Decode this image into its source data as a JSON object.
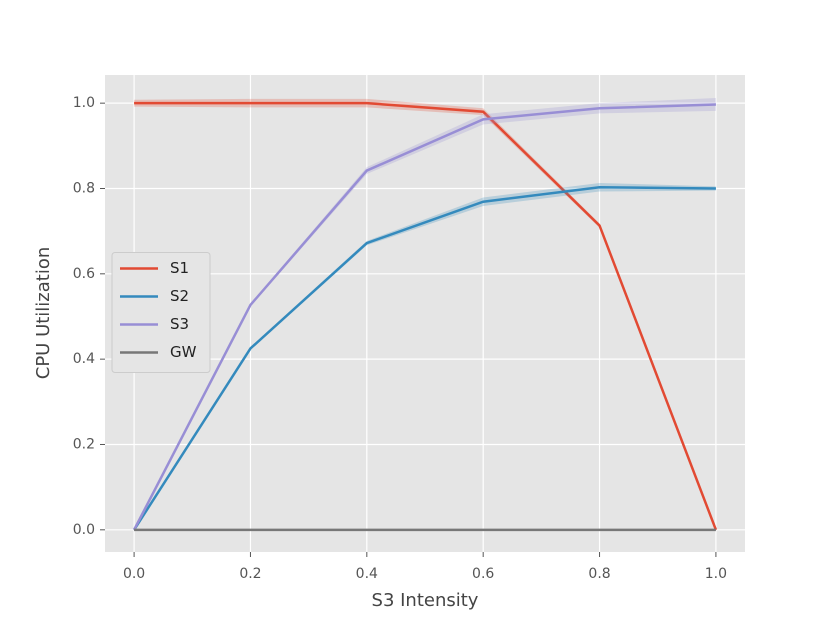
{
  "chart_data": {
    "type": "line",
    "x_label": "S3 Intensity",
    "y_label": "CPU Utilization",
    "x": [
      0.0,
      0.2,
      0.4,
      0.6,
      0.8,
      1.0
    ],
    "series": [
      {
        "name": "S1",
        "color": "#e24a33",
        "values": [
          1.0,
          1.0,
          1.0,
          0.98,
          0.713,
          0.0
        ],
        "errors": [
          0.008,
          0.01,
          0.01,
          0.008,
          0.005,
          0.003
        ]
      },
      {
        "name": "S2",
        "color": "#348abd",
        "values": [
          0.0,
          0.425,
          0.672,
          0.769,
          0.803,
          0.8
        ],
        "errors": [
          0.003,
          0.003,
          0.005,
          0.01,
          0.01,
          0.005
        ]
      },
      {
        "name": "S3",
        "color": "#988ed5",
        "values": [
          0.0,
          0.527,
          0.842,
          0.962,
          0.988,
          0.997
        ],
        "errors": [
          0.003,
          0.003,
          0.008,
          0.012,
          0.012,
          0.015
        ]
      },
      {
        "name": "GW",
        "color": "#777777",
        "values": [
          0.0,
          0.0,
          0.0,
          0.0,
          0.0,
          0.0
        ],
        "errors": [
          0.0,
          0.0,
          0.0,
          0.0,
          0.0,
          0.0
        ]
      }
    ],
    "xlim": [
      -0.05,
      1.05
    ],
    "ylim": [
      -0.052,
      1.066
    ],
    "xticks": [
      {
        "value": 0,
        "label": "0.0"
      },
      0.2,
      0.4,
      0.6,
      0.8,
      {
        "value": 1,
        "label": "1.0"
      }
    ],
    "yticks": [
      {
        "value": 0,
        "label": "0.0"
      },
      0.2,
      0.4,
      0.6,
      0.8,
      {
        "value": 1,
        "label": "1.0"
      }
    ],
    "grid": true,
    "legend_position": "center left",
    "background": "#e5e5e5"
  }
}
